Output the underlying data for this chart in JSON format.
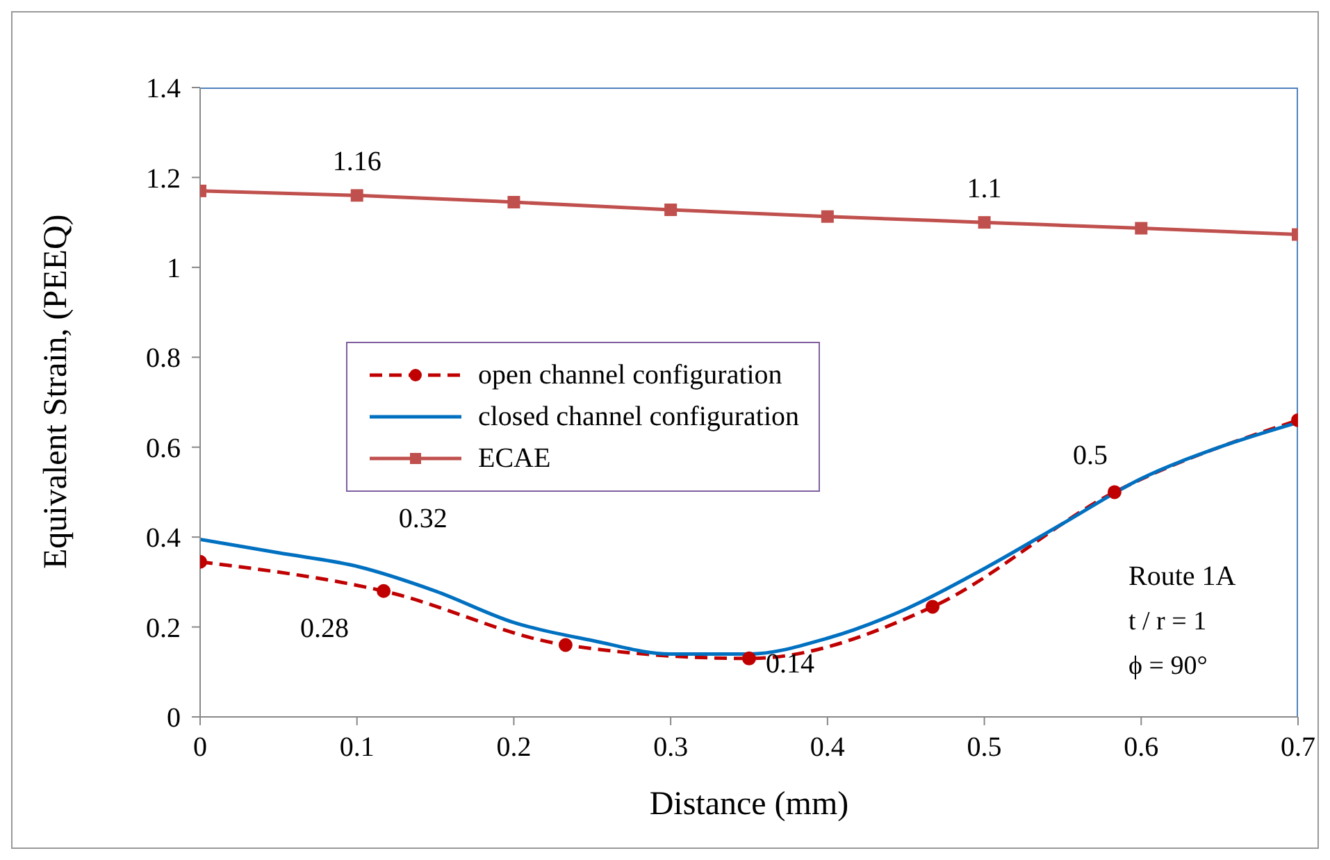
{
  "chart_data": {
    "type": "line",
    "xlabel": "Distance (mm)",
    "ylabel": "Equivalent Strain, (PEEQ)",
    "xlim": [
      0,
      0.7
    ],
    "xticks": [
      0,
      0.1,
      0.2,
      0.3,
      0.4,
      0.5,
      0.6,
      0.7
    ],
    "ylim": [
      0,
      1.4
    ],
    "yticks": [
      0,
      0.2,
      0.4,
      0.6,
      0.8,
      1,
      1.2,
      1.4
    ],
    "grid": false,
    "legend": "left",
    "series": [
      {
        "name": "open channel configuration",
        "color": "#c00000",
        "marker": "circle",
        "line_style": "dashed",
        "x": [
          0,
          0.117,
          0.233,
          0.35,
          0.467,
          0.583,
          0.7
        ],
        "values": [
          0.345,
          0.28,
          0.16,
          0.13,
          0.245,
          0.5,
          0.66
        ]
      },
      {
        "name": "closed channel configuration",
        "color": "#0070c0",
        "marker": "none",
        "line_style": "solid",
        "x": [
          0,
          0.05,
          0.1,
          0.15,
          0.2,
          0.25,
          0.3,
          0.35,
          0.4,
          0.45,
          0.5,
          0.55,
          0.6,
          0.65,
          0.7
        ],
        "values": [
          0.395,
          0.365,
          0.335,
          0.28,
          0.21,
          0.17,
          0.14,
          0.14,
          0.175,
          0.24,
          0.33,
          0.43,
          0.53,
          0.6,
          0.655
        ]
      },
      {
        "name": "ECAE",
        "color": "#c0504d",
        "marker": "square",
        "line_style": "solid",
        "x": [
          0,
          0.1,
          0.2,
          0.3,
          0.4,
          0.5,
          0.6,
          0.7
        ],
        "values": [
          1.17,
          1.16,
          1.145,
          1.128,
          1.113,
          1.1,
          1.087,
          1.073
        ]
      }
    ],
    "annotations": [
      {
        "text": "1.16",
        "x": 0.1,
        "y": 1.16
      },
      {
        "text": "1.1",
        "x": 0.5,
        "y": 1.1
      },
      {
        "text": "0.32",
        "x": 0.1,
        "y": 0.335
      },
      {
        "text": "0.28",
        "x": 0.117,
        "y": 0.28
      },
      {
        "text": "0.14",
        "x": 0.35,
        "y": 0.13
      },
      {
        "text": "0.5",
        "x": 0.583,
        "y": 0.5
      },
      "Route 1A",
      "t / r = 1",
      "ϕ = 90°"
    ]
  }
}
